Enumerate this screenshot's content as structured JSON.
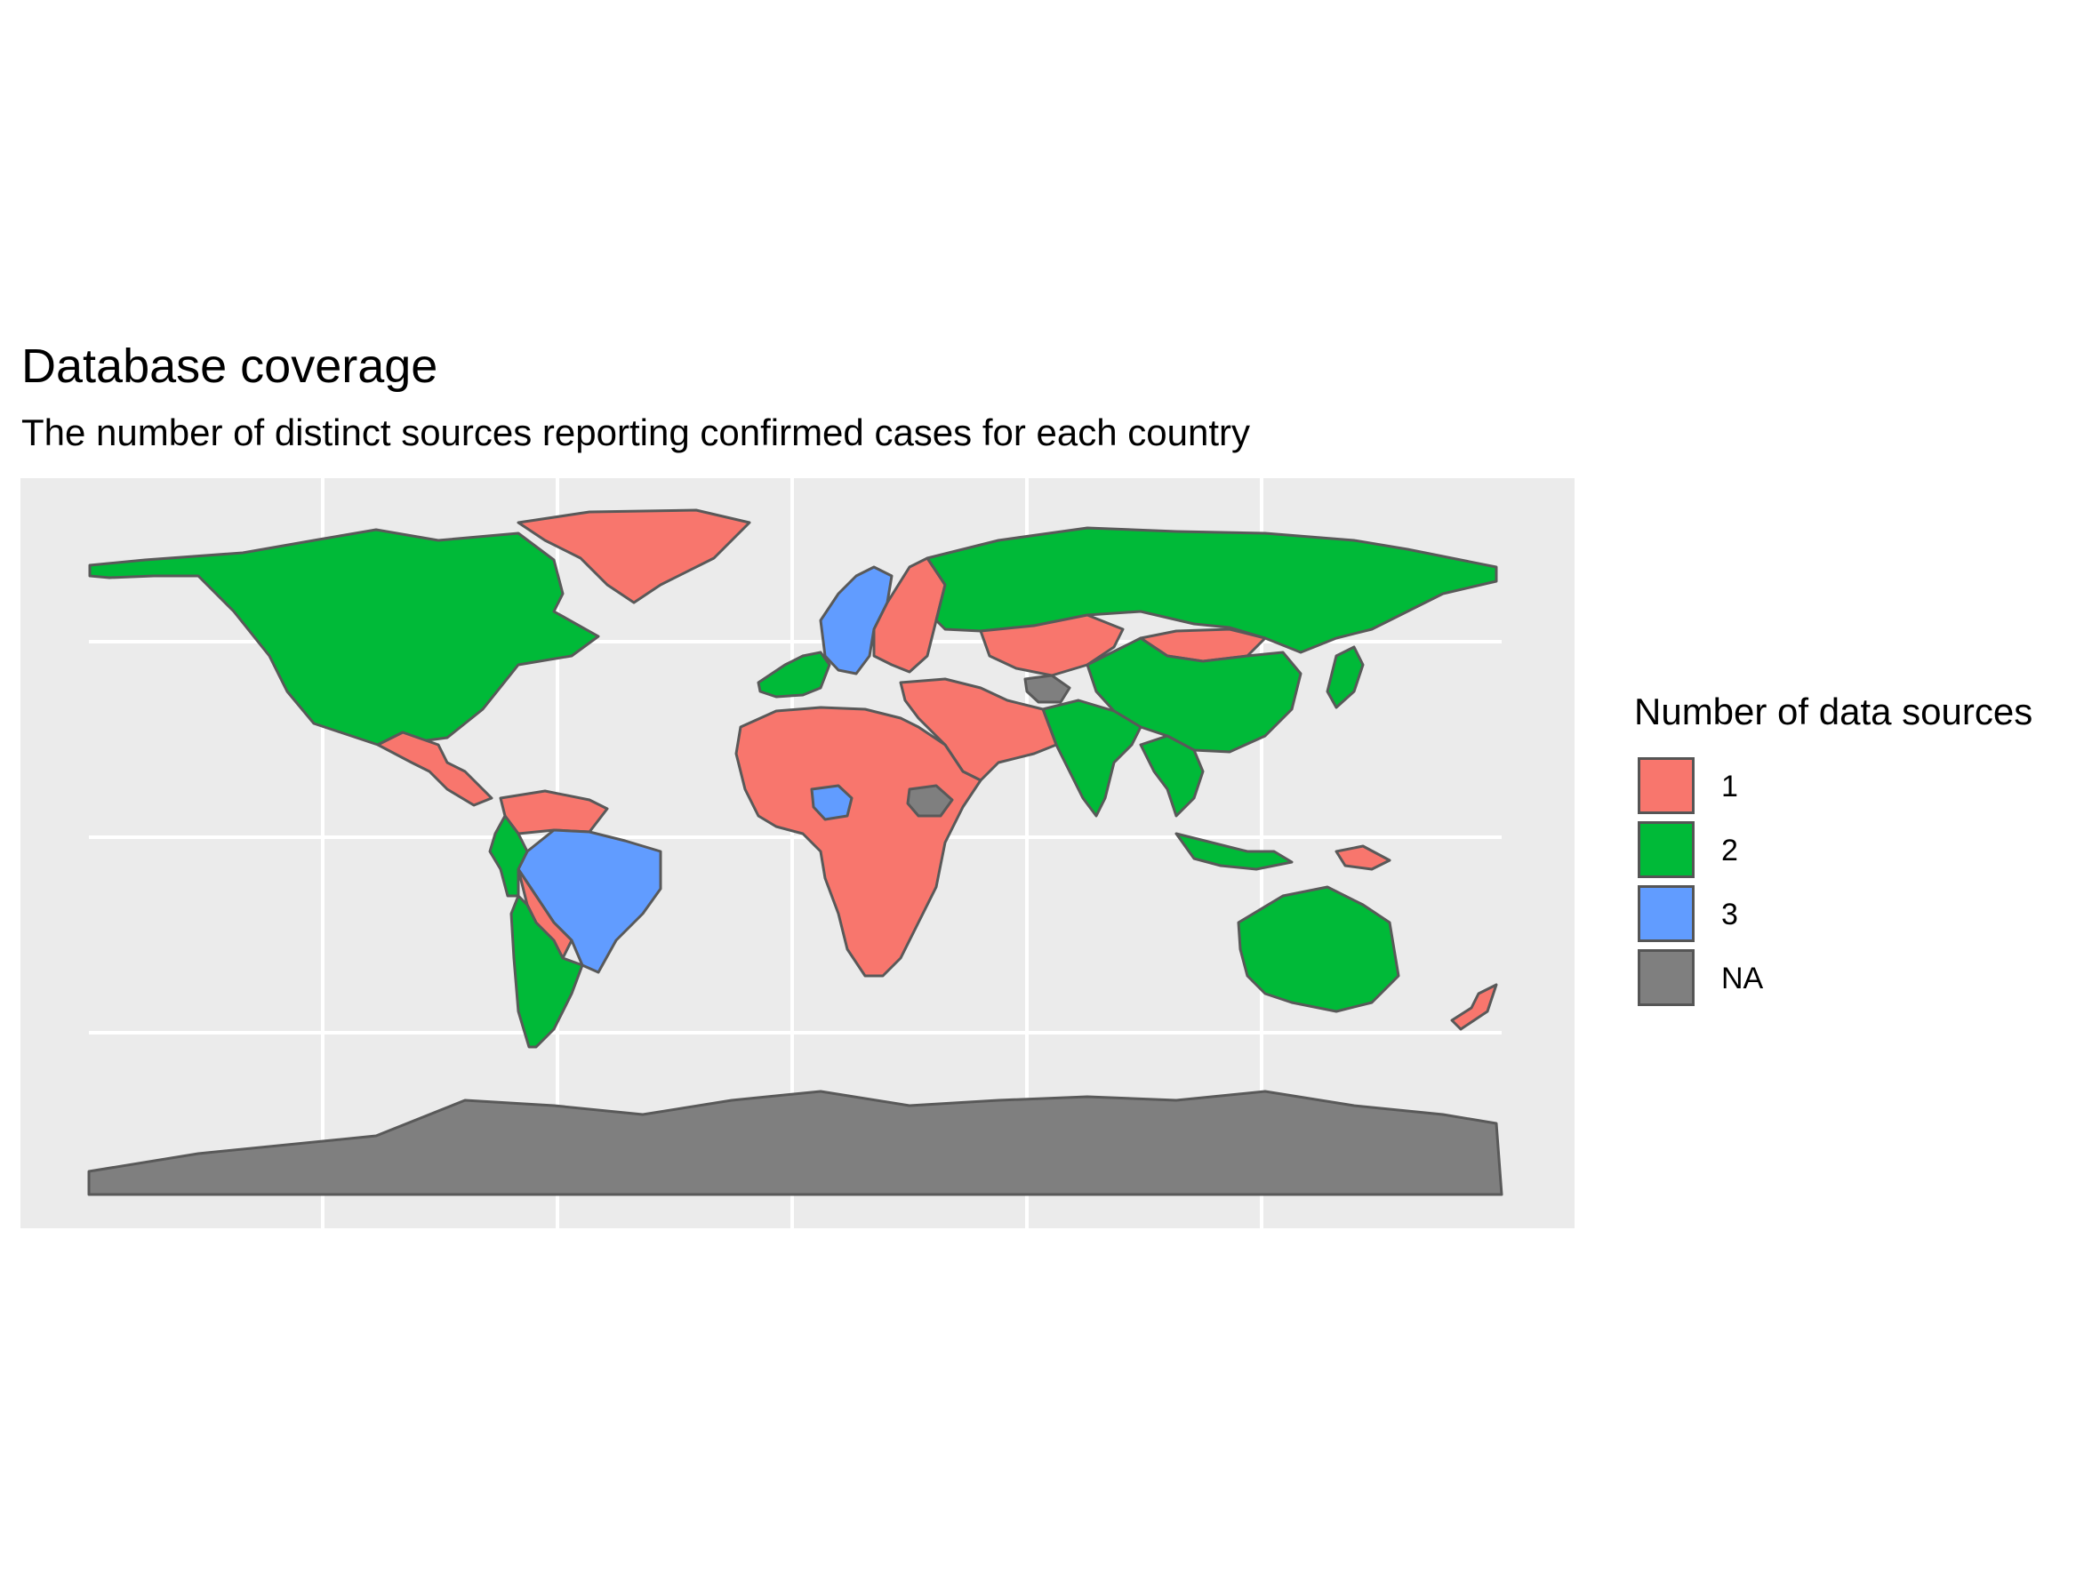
{
  "title": "Database coverage",
  "subtitle": "The number of distinct sources reporting confirmed cases for each country",
  "legend": {
    "title": "Number of data sources",
    "items": [
      {
        "label": "1",
        "color": "#F8766D"
      },
      {
        "label": "2",
        "color": "#00BA38"
      },
      {
        "label": "3",
        "color": "#619CFF"
      },
      {
        "label": "NA",
        "color": "#7F7F7F"
      }
    ]
  },
  "colors": {
    "panel_background": "#EBEBEB",
    "grid": "#FFFFFF",
    "border": "#595959"
  },
  "map": {
    "type": "choropleth",
    "projection": "equirectangular",
    "grid_lines": true,
    "axis_labels_shown": false,
    "regions": [
      {
        "name": "North America",
        "category": "2"
      },
      {
        "name": "Greenland",
        "category": "1"
      },
      {
        "name": "Central America",
        "category": "1"
      },
      {
        "name": "Venezuela / Colombia region",
        "category": "1"
      },
      {
        "name": "Brazil",
        "category": "3"
      },
      {
        "name": "Andean South America",
        "category": "2"
      },
      {
        "name": "Bolivia / Paraguay",
        "category": "1"
      },
      {
        "name": "Southern Cone",
        "category": "2"
      },
      {
        "name": "Western Europe",
        "category": "2"
      },
      {
        "name": "Central Europe",
        "category": "3"
      },
      {
        "name": "Eastern Europe",
        "category": "1"
      },
      {
        "name": "Russia",
        "category": "2"
      },
      {
        "name": "Kazakhstan / Central Asia",
        "category": "1"
      },
      {
        "name": "Mongolia",
        "category": "1"
      },
      {
        "name": "China",
        "category": "2"
      },
      {
        "name": "India",
        "category": "2"
      },
      {
        "name": "Middle East",
        "category": "1"
      },
      {
        "name": "Africa",
        "category": "1"
      },
      {
        "name": "Nigeria",
        "category": "3"
      },
      {
        "name": "Southeast Asia",
        "category": "2"
      },
      {
        "name": "Indonesia",
        "category": "2"
      },
      {
        "name": "Papua New Guinea",
        "category": "1"
      },
      {
        "name": "Australia",
        "category": "2"
      },
      {
        "name": "New Zealand",
        "category": "1"
      },
      {
        "name": "Japan",
        "category": "2"
      },
      {
        "name": "Antarctica",
        "category": "NA"
      },
      {
        "name": "Afghanistan",
        "category": "NA"
      },
      {
        "name": "Ethiopia",
        "category": "NA"
      }
    ]
  }
}
